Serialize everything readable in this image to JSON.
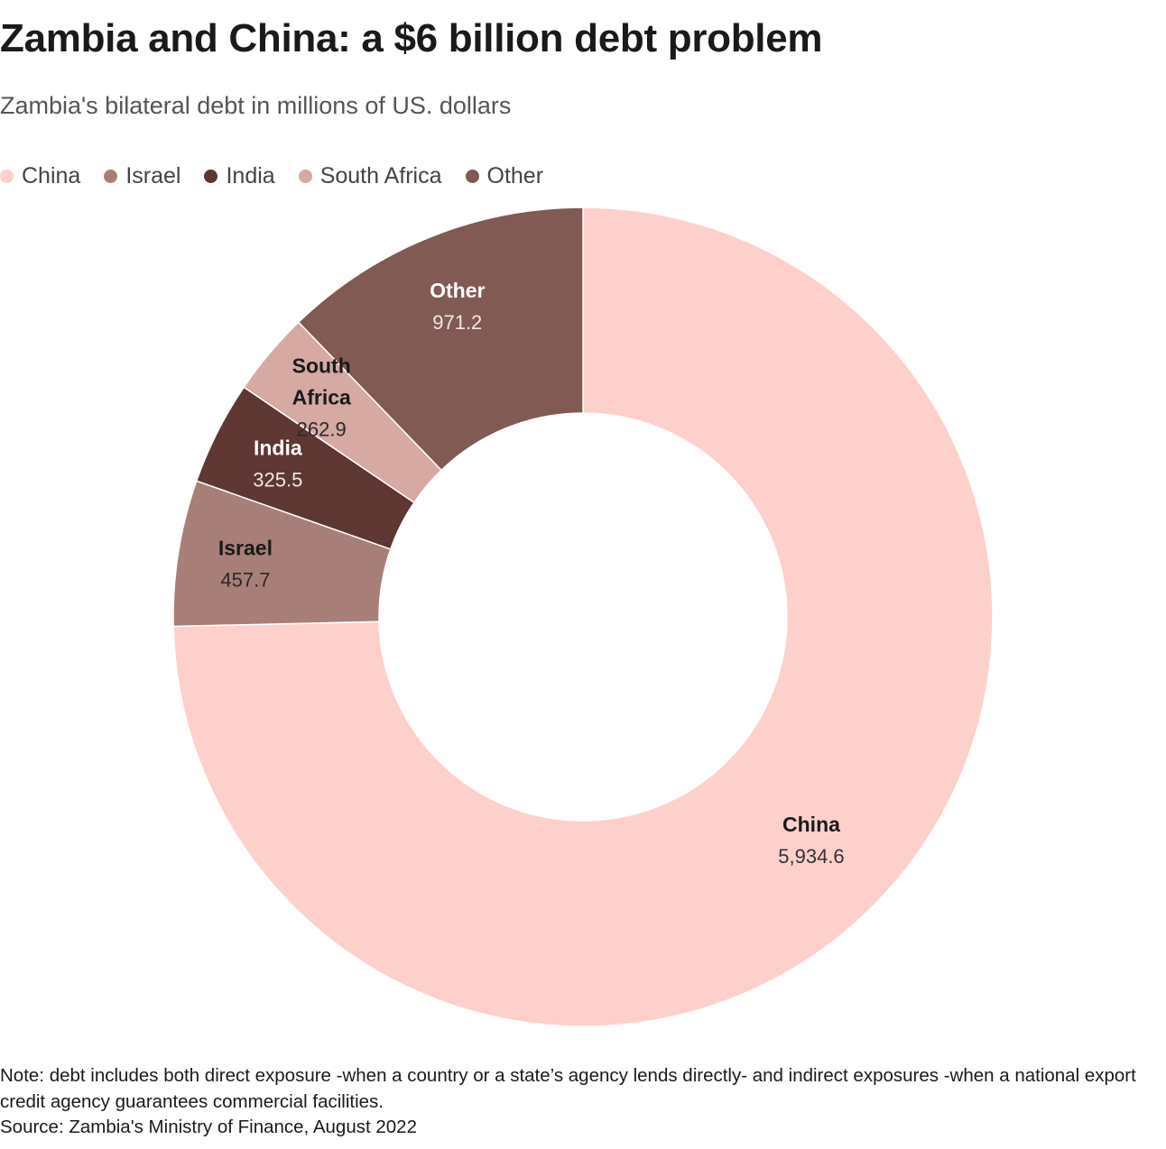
{
  "title": "Zambia and China: a $6 billion debt problem",
  "subtitle": "Zambia's bilateral debt in millions of US. dollars",
  "note": "Note: debt includes both direct exposure -when a country or a state’s agency lends directly- and indirect exposures -when a national export credit agency guarantees commercial facilities.",
  "source": "Source: Zambia's Ministry of Finance, August 2022",
  "chart_data": {
    "type": "pie",
    "donut": true,
    "legend_position": "top-left",
    "slices": [
      {
        "name": "China",
        "value": 5934.6,
        "value_label": "5,934.6",
        "label_lines": [
          "China"
        ],
        "color": "#FDD0CB",
        "label_color": "#1a1a1a",
        "value_color": "#333333"
      },
      {
        "name": "Israel",
        "value": 457.7,
        "value_label": "457.7",
        "label_lines": [
          "Israel"
        ],
        "color": "#A87F78",
        "label_color": "#1a1a1a",
        "value_color": "#2a2a2a"
      },
      {
        "name": "India",
        "value": 325.5,
        "value_label": "325.5",
        "label_lines": [
          "India"
        ],
        "color": "#5E3732",
        "label_color": "#ffffff",
        "value_color": "#f2e6e4"
      },
      {
        "name": "South Africa",
        "value": 262.9,
        "value_label": "262.9",
        "label_lines": [
          "South",
          "Africa"
        ],
        "color": "#D6A9A2",
        "label_color": "#1a1a1a",
        "value_color": "#2a2a2a"
      },
      {
        "name": "Other",
        "value": 971.2,
        "value_label": "971.2",
        "label_lines": [
          "Other"
        ],
        "color": "#815A54",
        "label_color": "#ffffff",
        "value_color": "#f2e6e4"
      }
    ]
  }
}
